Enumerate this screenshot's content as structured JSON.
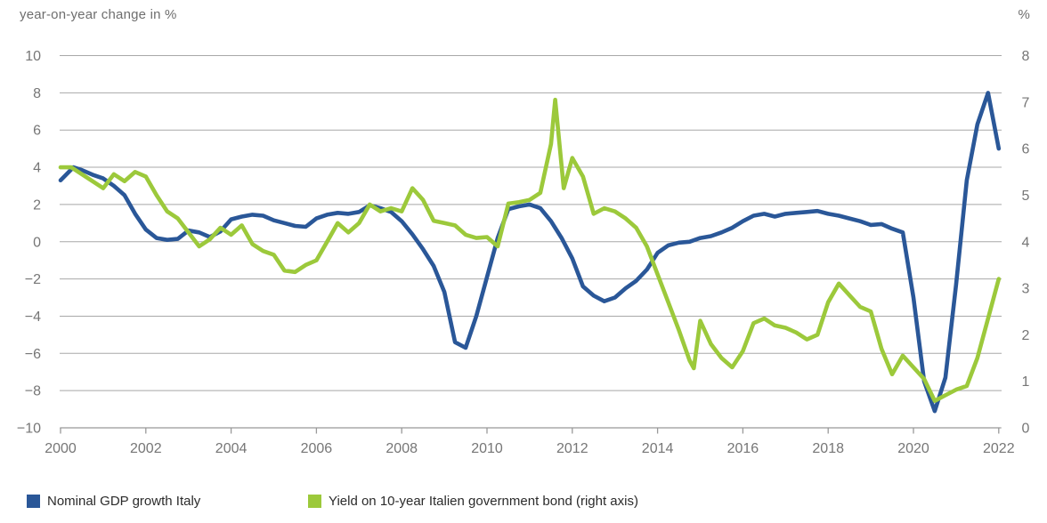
{
  "colors": {
    "gdp_line": "#2A5798",
    "yield_line": "#9CC93B",
    "grid": "#a8a8a8",
    "axis_line": "#999999",
    "axis_text": "#767676",
    "title_text": "#6e6e6e",
    "legend_text": "#2b2b2b",
    "background": "#ffffff"
  },
  "chart_data": {
    "type": "line",
    "title_left": "year-on-year change in %",
    "title_right": "%",
    "grid": true,
    "legend_position": "bottom",
    "x_axis": {
      "min": 2000,
      "max": 2022,
      "tick_values": [
        2000,
        2002,
        2004,
        2006,
        2008,
        2010,
        2012,
        2014,
        2016,
        2018,
        2020,
        2022
      ],
      "tick_labels": [
        "2000",
        "2002",
        "2004",
        "2006",
        "2008",
        "2010",
        "2012",
        "2014",
        "2016",
        "2018",
        "2020",
        "2022"
      ]
    },
    "left_axis": {
      "min": -10,
      "max": 10,
      "tick_values": [
        10,
        8,
        6,
        4,
        2,
        0,
        -2,
        -4,
        -6,
        -8,
        -10
      ],
      "tick_labels": [
        "10",
        "8",
        "6",
        "4",
        "2",
        "0",
        "−2",
        "−4",
        "−6",
        "−8",
        "−10"
      ]
    },
    "right_axis": {
      "min": 0,
      "max": 8,
      "tick_values": [
        8,
        7,
        6,
        5,
        4,
        3,
        2,
        1,
        0
      ],
      "tick_labels": [
        "8",
        "7",
        "6",
        "5",
        "4",
        "3",
        "2",
        "1",
        "0"
      ]
    },
    "series": [
      {
        "name": "Nominal GDP growth Italy",
        "axis": "left",
        "color_key": "gdp_line",
        "points": [
          [
            2000.0,
            3.3
          ],
          [
            2000.3,
            4.0
          ],
          [
            2000.5,
            3.85
          ],
          [
            2000.75,
            3.6
          ],
          [
            2001.0,
            3.4
          ],
          [
            2001.25,
            3.0
          ],
          [
            2001.5,
            2.5
          ],
          [
            2001.75,
            1.5
          ],
          [
            2002.0,
            0.65
          ],
          [
            2002.25,
            0.2
          ],
          [
            2002.5,
            0.1
          ],
          [
            2002.75,
            0.15
          ],
          [
            2003.0,
            0.6
          ],
          [
            2003.25,
            0.5
          ],
          [
            2003.5,
            0.25
          ],
          [
            2003.75,
            0.55
          ],
          [
            2004.0,
            1.2
          ],
          [
            2004.25,
            1.35
          ],
          [
            2004.5,
            1.45
          ],
          [
            2004.75,
            1.4
          ],
          [
            2005.0,
            1.15
          ],
          [
            2005.25,
            1.0
          ],
          [
            2005.5,
            0.85
          ],
          [
            2005.75,
            0.8
          ],
          [
            2006.0,
            1.25
          ],
          [
            2006.25,
            1.45
          ],
          [
            2006.5,
            1.55
          ],
          [
            2006.75,
            1.5
          ],
          [
            2007.0,
            1.6
          ],
          [
            2007.25,
            1.95
          ],
          [
            2007.5,
            1.8
          ],
          [
            2007.75,
            1.6
          ],
          [
            2008.0,
            1.1
          ],
          [
            2008.25,
            0.4
          ],
          [
            2008.5,
            -0.4
          ],
          [
            2008.75,
            -1.3
          ],
          [
            2009.0,
            -2.7
          ],
          [
            2009.25,
            -5.4
          ],
          [
            2009.5,
            -5.7
          ],
          [
            2009.75,
            -4.0
          ],
          [
            2010.0,
            -1.9
          ],
          [
            2010.25,
            0.2
          ],
          [
            2010.5,
            1.75
          ],
          [
            2010.75,
            1.9
          ],
          [
            2011.0,
            2.0
          ],
          [
            2011.25,
            1.8
          ],
          [
            2011.5,
            1.1
          ],
          [
            2011.75,
            0.2
          ],
          [
            2012.0,
            -0.9
          ],
          [
            2012.25,
            -2.4
          ],
          [
            2012.5,
            -2.9
          ],
          [
            2012.75,
            -3.2
          ],
          [
            2013.0,
            -3.0
          ],
          [
            2013.25,
            -2.5
          ],
          [
            2013.5,
            -2.1
          ],
          [
            2013.75,
            -1.5
          ],
          [
            2014.0,
            -0.6
          ],
          [
            2014.25,
            -0.2
          ],
          [
            2014.5,
            -0.05
          ],
          [
            2014.75,
            0.0
          ],
          [
            2015.0,
            0.2
          ],
          [
            2015.25,
            0.3
          ],
          [
            2015.5,
            0.5
          ],
          [
            2015.75,
            0.75
          ],
          [
            2016.0,
            1.1
          ],
          [
            2016.25,
            1.4
          ],
          [
            2016.5,
            1.5
          ],
          [
            2016.75,
            1.35
          ],
          [
            2017.0,
            1.5
          ],
          [
            2017.25,
            1.55
          ],
          [
            2017.5,
            1.6
          ],
          [
            2017.75,
            1.65
          ],
          [
            2018.0,
            1.5
          ],
          [
            2018.25,
            1.4
          ],
          [
            2018.5,
            1.25
          ],
          [
            2018.75,
            1.1
          ],
          [
            2019.0,
            0.9
          ],
          [
            2019.25,
            0.95
          ],
          [
            2019.5,
            0.7
          ],
          [
            2019.75,
            0.5
          ],
          [
            2020.0,
            -3.0
          ],
          [
            2020.25,
            -7.5
          ],
          [
            2020.5,
            -9.1
          ],
          [
            2020.75,
            -7.3
          ],
          [
            2021.0,
            -2.3
          ],
          [
            2021.25,
            3.3
          ],
          [
            2021.5,
            6.3
          ],
          [
            2021.75,
            8.0
          ],
          [
            2022.0,
            5.0
          ]
        ]
      },
      {
        "name": "Yield on 10-year Italien government bond (right axis)",
        "axis": "right",
        "color_key": "yield_line",
        "points": [
          [
            2000.0,
            5.6
          ],
          [
            2000.25,
            5.6
          ],
          [
            2000.5,
            5.45
          ],
          [
            2000.75,
            5.3
          ],
          [
            2001.0,
            5.15
          ],
          [
            2001.25,
            5.45
          ],
          [
            2001.5,
            5.3
          ],
          [
            2001.75,
            5.5
          ],
          [
            2002.0,
            5.4
          ],
          [
            2002.25,
            5.0
          ],
          [
            2002.5,
            4.65
          ],
          [
            2002.75,
            4.5
          ],
          [
            2003.0,
            4.2
          ],
          [
            2003.25,
            3.9
          ],
          [
            2003.5,
            4.05
          ],
          [
            2003.75,
            4.3
          ],
          [
            2004.0,
            4.15
          ],
          [
            2004.25,
            4.35
          ],
          [
            2004.5,
            3.95
          ],
          [
            2004.75,
            3.8
          ],
          [
            2005.0,
            3.72
          ],
          [
            2005.25,
            3.38
          ],
          [
            2005.5,
            3.35
          ],
          [
            2005.75,
            3.5
          ],
          [
            2006.0,
            3.6
          ],
          [
            2006.25,
            4.0
          ],
          [
            2006.5,
            4.4
          ],
          [
            2006.75,
            4.2
          ],
          [
            2007.0,
            4.4
          ],
          [
            2007.25,
            4.8
          ],
          [
            2007.5,
            4.65
          ],
          [
            2007.75,
            4.72
          ],
          [
            2008.0,
            4.65
          ],
          [
            2008.25,
            5.15
          ],
          [
            2008.5,
            4.9
          ],
          [
            2008.75,
            4.45
          ],
          [
            2009.0,
            4.4
          ],
          [
            2009.25,
            4.35
          ],
          [
            2009.5,
            4.15
          ],
          [
            2009.75,
            4.08
          ],
          [
            2010.0,
            4.1
          ],
          [
            2010.25,
            3.9
          ],
          [
            2010.5,
            4.82
          ],
          [
            2010.75,
            4.85
          ],
          [
            2011.0,
            4.9
          ],
          [
            2011.25,
            5.05
          ],
          [
            2011.5,
            6.1
          ],
          [
            2011.6,
            7.05
          ],
          [
            2011.8,
            5.15
          ],
          [
            2012.0,
            5.8
          ],
          [
            2012.25,
            5.4
          ],
          [
            2012.5,
            4.6
          ],
          [
            2012.75,
            4.72
          ],
          [
            2013.0,
            4.65
          ],
          [
            2013.25,
            4.5
          ],
          [
            2013.5,
            4.3
          ],
          [
            2013.75,
            3.9
          ],
          [
            2014.0,
            3.3
          ],
          [
            2014.25,
            2.7
          ],
          [
            2014.5,
            2.1
          ],
          [
            2014.75,
            1.45
          ],
          [
            2014.85,
            1.28
          ],
          [
            2015.0,
            2.3
          ],
          [
            2015.25,
            1.8
          ],
          [
            2015.5,
            1.5
          ],
          [
            2015.75,
            1.3
          ],
          [
            2016.0,
            1.65
          ],
          [
            2016.25,
            2.25
          ],
          [
            2016.5,
            2.35
          ],
          [
            2016.75,
            2.2
          ],
          [
            2017.0,
            2.15
          ],
          [
            2017.25,
            2.05
          ],
          [
            2017.5,
            1.9
          ],
          [
            2017.75,
            2.0
          ],
          [
            2018.0,
            2.7
          ],
          [
            2018.25,
            3.1
          ],
          [
            2018.5,
            2.85
          ],
          [
            2018.75,
            2.6
          ],
          [
            2019.0,
            2.5
          ],
          [
            2019.25,
            1.7
          ],
          [
            2019.5,
            1.15
          ],
          [
            2019.75,
            1.55
          ],
          [
            2020.0,
            1.3
          ],
          [
            2020.25,
            1.05
          ],
          [
            2020.5,
            0.58
          ],
          [
            2020.75,
            0.7
          ],
          [
            2021.0,
            0.82
          ],
          [
            2021.25,
            0.9
          ],
          [
            2021.5,
            1.5
          ],
          [
            2021.75,
            2.35
          ],
          [
            2022.0,
            3.2
          ]
        ]
      }
    ]
  }
}
